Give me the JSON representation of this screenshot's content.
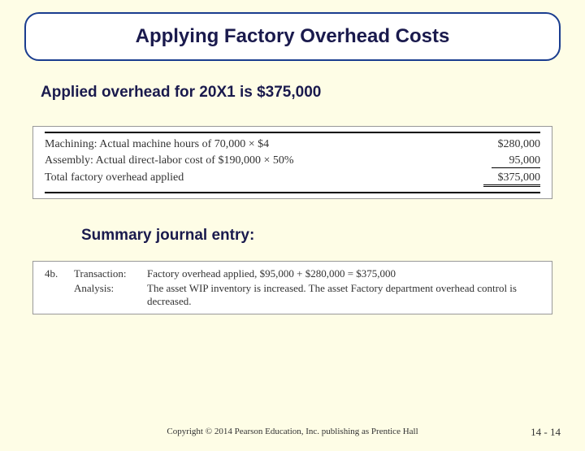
{
  "title": "Applying Factory Overhead Costs",
  "subtitle": "Applied overhead for 20X1 is $375,000",
  "calc_table": {
    "rows": [
      {
        "label": "Machining: Actual machine hours of 70,000 × $4",
        "value": "$280,000",
        "style": "plain"
      },
      {
        "label": "Assembly: Actual direct-labor cost of $190,000 × 50%",
        "value": "95,000",
        "style": "single"
      },
      {
        "label": "Total factory overhead applied",
        "value": "$375,000",
        "style": "double"
      }
    ]
  },
  "summary_title": "Summary journal entry:",
  "journal": {
    "num": "4b.",
    "rows": [
      {
        "col2": "Transaction:",
        "col3": "Factory overhead applied, $95,000 + $280,000 = $375,000"
      },
      {
        "col2": "Analysis:",
        "col3": "The asset WIP inventory is increased. The asset Factory department overhead control is decreased."
      }
    ]
  },
  "footer": "Copyright © 2014 Pearson Education, Inc. publishing as Prentice Hall",
  "page_num": "14 - 14"
}
